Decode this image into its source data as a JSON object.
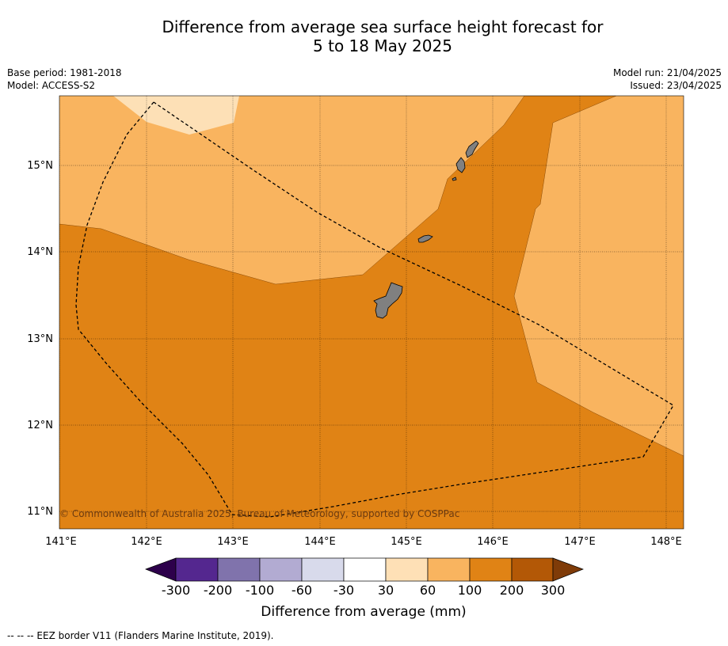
{
  "title": {
    "line1": "Difference from average sea surface height forecast for",
    "line2": "5 to 18 May 2025"
  },
  "meta": {
    "base_period": "Base period: 1981-2018",
    "model": "Model: ACCESS-S2",
    "model_run": "Model run: 21/04/2025",
    "issued": "Issued: 23/04/2025"
  },
  "map": {
    "longitude_labels": [
      "141°E",
      "142°E",
      "143°E",
      "144°E",
      "145°E",
      "146°E",
      "147°E",
      "148°E"
    ],
    "latitude_labels": [
      "15°N",
      "14°N",
      "13°N",
      "12°N",
      "11°N"
    ],
    "lon_range": [
      141,
      148.2
    ],
    "lat_range": [
      10.8,
      15.8
    ],
    "copyright": "© Commonwealth of Australia 2025, Bureau of Meteorology, supported by COSPPac",
    "colors": {
      "30_to_60": "#fde0b6",
      "60_to_100": "#f9b45f",
      "100_to_200": "#e08315",
      "land": "#808080"
    }
  },
  "colorbar": {
    "tick_labels": [
      "-300",
      "-200",
      "-100",
      "-60",
      "-30",
      "30",
      "60",
      "100",
      "200",
      "300"
    ],
    "colors": [
      "#54278f",
      "#8073ac",
      "#b2abd2",
      "#d8daeb",
      "#ffffff",
      "#fee0b6",
      "#f9b45f",
      "#e08315",
      "#b35806"
    ],
    "under_color": "#2d004b",
    "over_color": "#7f3b08",
    "label": "Difference from average (mm)"
  },
  "footer": {
    "legend_text": "--  --  -- EEZ border V11 (Flanders Marine Institute, 2019)."
  }
}
